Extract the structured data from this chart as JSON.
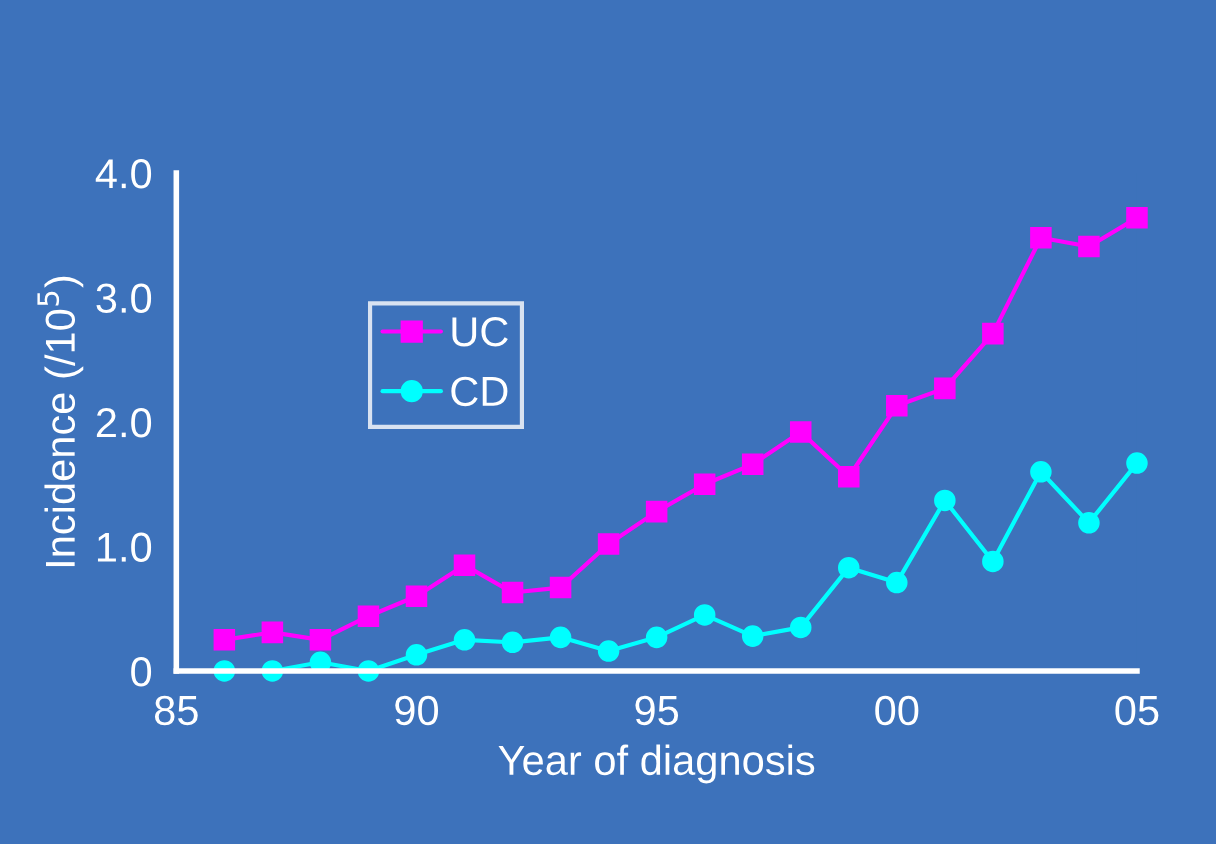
{
  "chart_data": {
    "type": "line",
    "xlabel": "Year of diagnosis",
    "ylabel": "Incidence (/10$^{5}$)",
    "x": [
      1986,
      1987,
      1988,
      1989,
      1990,
      1991,
      1992,
      1993,
      1994,
      1995,
      1996,
      1997,
      1998,
      1999,
      2000,
      2001,
      2002,
      2003,
      2004,
      2005
    ],
    "series": [
      {
        "name": "UC",
        "color": "#ff00ff",
        "marker": "square",
        "values": [
          0.25,
          0.31,
          0.25,
          0.44,
          0.6,
          0.85,
          0.63,
          0.67,
          1.02,
          1.28,
          1.5,
          1.66,
          1.92,
          1.56,
          2.13,
          2.27,
          2.71,
          3.48,
          3.41,
          3.64
        ]
      },
      {
        "name": "CD",
        "color": "#00ffff",
        "marker": "circle",
        "values": [
          0,
          0,
          0.07,
          0,
          0.13,
          0.25,
          0.23,
          0.27,
          0.16,
          0.27,
          0.45,
          0.28,
          0.35,
          0.83,
          0.71,
          1.37,
          0.88,
          1.6,
          1.19,
          1.67
        ]
      }
    ],
    "xlim": [
      1985,
      2005
    ],
    "xticks": [
      {
        "value": 1985,
        "label": "85"
      },
      {
        "value": 1990,
        "label": "90"
      },
      {
        "value": 1995,
        "label": "95"
      },
      {
        "value": 2000,
        "label": "00"
      },
      {
        "value": 2005,
        "label": "05"
      }
    ],
    "ylim": [
      0,
      4
    ],
    "yticks": [
      0,
      {
        "value": 1,
        "label": "1.0"
      },
      {
        "value": 2,
        "label": "2.0"
      },
      {
        "value": 3,
        "label": "3.0"
      },
      {
        "value": 4,
        "label": "4.0"
      }
    ],
    "grid": false,
    "legend": "top left",
    "line_style": "solid"
  }
}
